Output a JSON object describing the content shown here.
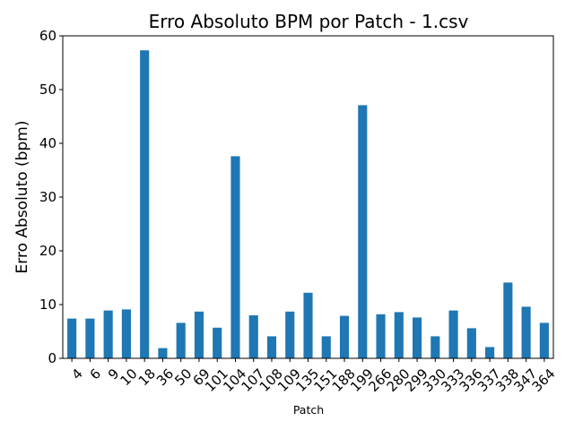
{
  "chart_data": {
    "type": "bar",
    "title": "Erro Absoluto BPM por Patch - 1.csv",
    "xlabel": "Patch",
    "ylabel": "Erro Absoluto (bpm)",
    "ylim": [
      0,
      60
    ],
    "yticks": [
      0,
      10,
      20,
      30,
      40,
      50,
      60
    ],
    "grid": false,
    "bar_color": "#1f77b4",
    "categories": [
      "4",
      "6",
      "9",
      "10",
      "18",
      "36",
      "50",
      "69",
      "101",
      "104",
      "107",
      "108",
      "109",
      "135",
      "151",
      "188",
      "199",
      "266",
      "280",
      "299",
      "330",
      "333",
      "336",
      "337",
      "338",
      "347",
      "364"
    ],
    "values": [
      7.4,
      7.4,
      8.9,
      9.1,
      57.3,
      1.9,
      6.6,
      8.7,
      5.7,
      37.6,
      8.0,
      4.1,
      8.7,
      12.2,
      4.1,
      7.9,
      47.1,
      8.2,
      8.6,
      7.6,
      4.1,
      8.9,
      5.6,
      2.1,
      14.1,
      9.6,
      6.6
    ]
  }
}
